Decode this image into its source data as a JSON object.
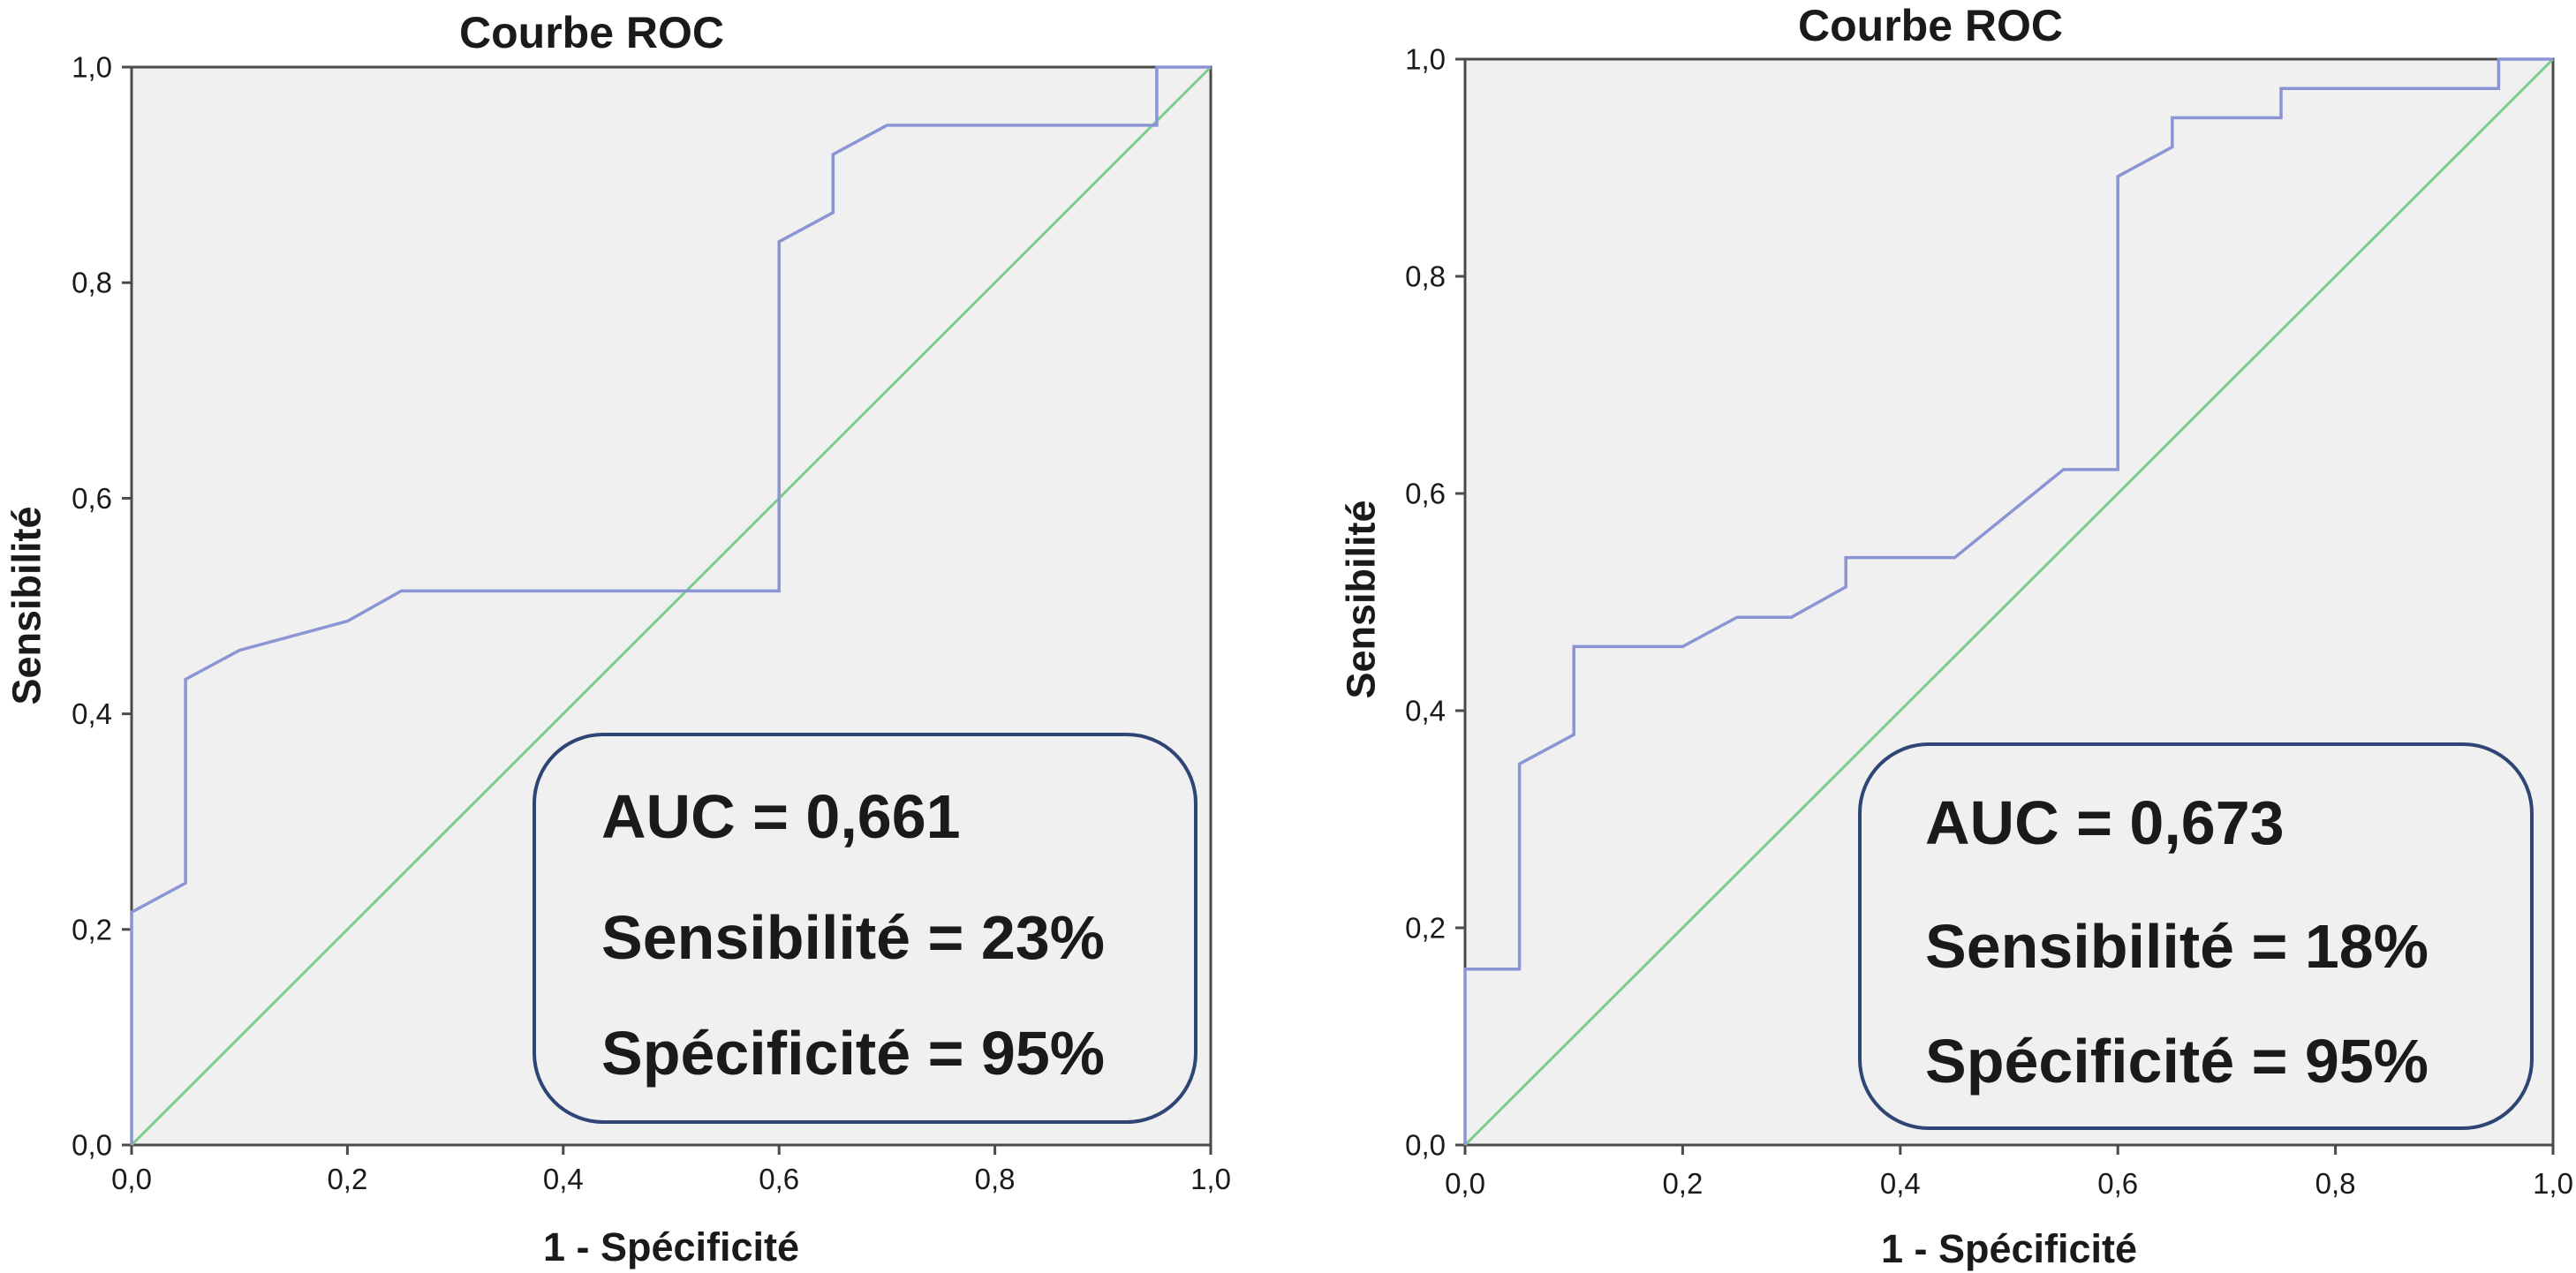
{
  "colors": {
    "page_background": "#ffffff",
    "plot_background": "#f0f0f0",
    "axis_frame": "#4a4a4a",
    "annotation_border": "#2f4575",
    "text": "#1a1a1a"
  },
  "chart_data": [
    {
      "type": "line",
      "title": "Courbe ROC",
      "xlabel": "1 - Spécificité",
      "ylabel": "Sensibilité",
      "xlim": [
        0,
        1
      ],
      "ylim": [
        0,
        1
      ],
      "x_ticks": [
        0,
        0.2,
        0.4,
        0.6,
        0.8,
        1
      ],
      "x_tick_labels": [
        "0,0",
        "0,2",
        "0,4",
        "0,6",
        "0,8",
        "1,0"
      ],
      "y_ticks": [
        0,
        0.2,
        0.4,
        0.6,
        0.8,
        1
      ],
      "y_tick_labels": [
        "0,0",
        "0,2",
        "0,4",
        "0,6",
        "0,8",
        "1,0"
      ],
      "grid": false,
      "legend": "none",
      "series": [
        {
          "x": [
            0,
            0,
            0.05,
            0.05,
            0.1,
            0.2,
            0.25,
            0.6,
            0.6,
            0.65,
            0.65,
            0.7,
            0.95,
            0.95,
            1
          ],
          "y": [
            0,
            0.216,
            0.243,
            0.432,
            0.459,
            0.486,
            0.514,
            0.514,
            0.838,
            0.865,
            0.919,
            0.946,
            0.946,
            1,
            1
          ],
          "color": "#8c95d3"
        },
        {
          "x": [
            0,
            1
          ],
          "y": [
            0,
            1
          ],
          "color": "#7ccb8c"
        }
      ],
      "annotations": [
        "AUC = 0,661",
        "Sensibilité = 23%",
        "Spécificité = 95%"
      ]
    },
    {
      "type": "line",
      "title": "Courbe ROC",
      "xlabel": "1 - Spécificité",
      "ylabel": "Sensibilité",
      "xlim": [
        0,
        1
      ],
      "ylim": [
        0,
        1
      ],
      "x_ticks": [
        0,
        0.2,
        0.4,
        0.6,
        0.8,
        1
      ],
      "x_tick_labels": [
        "0,0",
        "0,2",
        "0,4",
        "0,6",
        "0,8",
        "1,0"
      ],
      "y_ticks": [
        0,
        0.2,
        0.4,
        0.6,
        0.8,
        1
      ],
      "y_tick_labels": [
        "0,0",
        "0,2",
        "0,4",
        "0,6",
        "0,8",
        "1,0"
      ],
      "grid": false,
      "legend": "none",
      "series": [
        {
          "x": [
            0,
            0,
            0.05,
            0.05,
            0.1,
            0.1,
            0.2,
            0.25,
            0.3,
            0.35,
            0.35,
            0.45,
            0.55,
            0.6,
            0.6,
            0.65,
            0.65,
            0.75,
            0.75,
            0.95,
            0.95,
            1
          ],
          "y": [
            0,
            0.162,
            0.162,
            0.351,
            0.378,
            0.459,
            0.459,
            0.486,
            0.486,
            0.514,
            0.541,
            0.541,
            0.622,
            0.622,
            0.892,
            0.919,
            0.946,
            0.946,
            0.973,
            0.973,
            1,
            1
          ],
          "color": "#8c95d3"
        },
        {
          "x": [
            0,
            1
          ],
          "y": [
            0,
            1
          ],
          "color": "#7ccb8c"
        }
      ],
      "annotations": [
        "AUC = 0,673",
        "Sensibilité = 18%",
        "Spécificité = 95%"
      ]
    }
  ]
}
